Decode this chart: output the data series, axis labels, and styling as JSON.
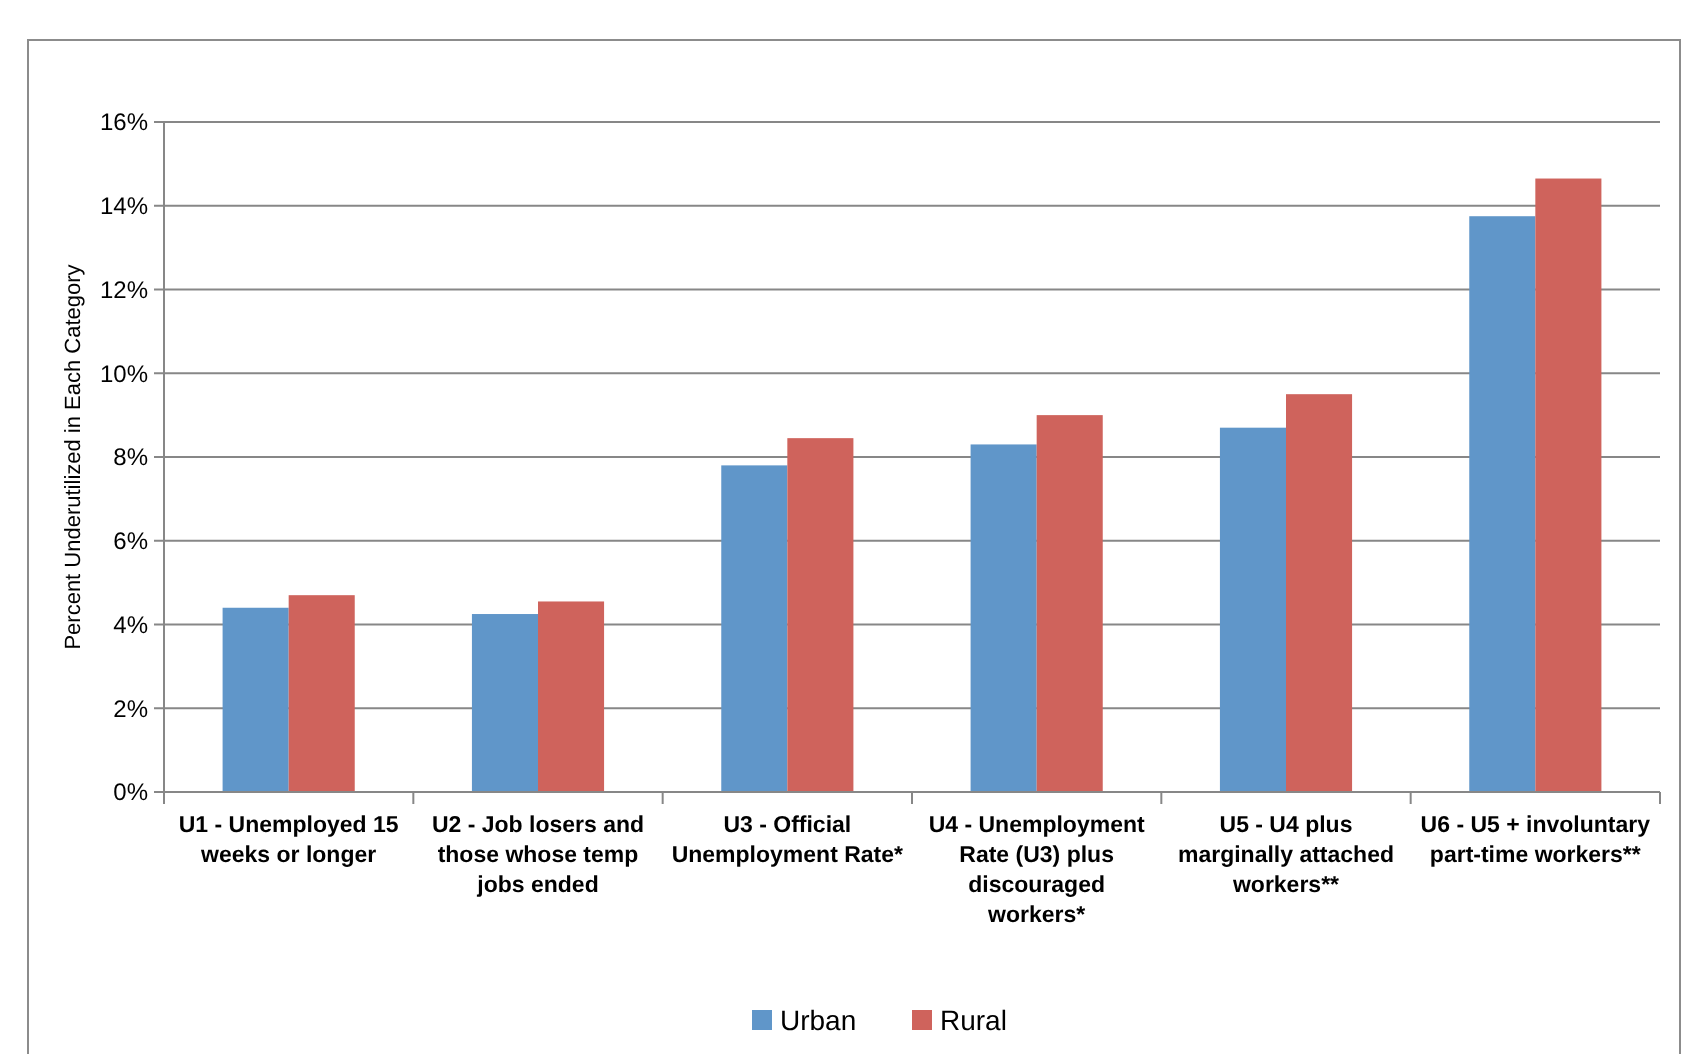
{
  "chart_data": {
    "type": "bar",
    "ylabel": "Percent Underutilized in Each Category",
    "categories": [
      "U1 - Unemployed 15 weeks or longer",
      "U2 - Job losers and those whose temp jobs ended",
      "U3 - Official Unemployment Rate*",
      "U4 - Unemployment Rate (U3) plus discouraged workers*",
      "U5 - U4 plus marginally attached workers**",
      "U6 - U5 + involuntary part-time workers**"
    ],
    "series": [
      {
        "name": "Urban",
        "color": "#6096c9",
        "values": [
          4.4,
          4.25,
          7.8,
          8.3,
          8.7,
          13.75
        ]
      },
      {
        "name": "Rural",
        "color": "#cf635c",
        "values": [
          4.7,
          4.55,
          8.45,
          9.0,
          9.5,
          14.65
        ]
      }
    ],
    "ylim": [
      0,
      16
    ],
    "yticks": [
      {
        "value": 0,
        "label": "0%"
      },
      {
        "value": 2,
        "label": "2%"
      },
      {
        "value": 4,
        "label": "4%"
      },
      {
        "value": 6,
        "label": "6%"
      },
      {
        "value": 8,
        "label": "8%"
      },
      {
        "value": 10,
        "label": "10%"
      },
      {
        "value": 12,
        "label": "12%"
      },
      {
        "value": 14,
        "label": "14%"
      },
      {
        "value": 16,
        "label": "16%"
      }
    ],
    "grid": "y",
    "legend": "bottom"
  }
}
